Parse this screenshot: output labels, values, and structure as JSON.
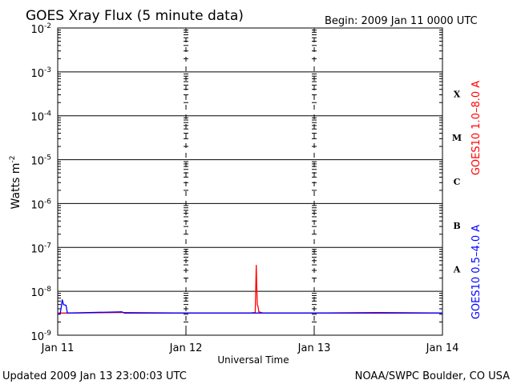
{
  "header": {
    "title": "GOES Xray Flux (5 minute data)",
    "begin": "Begin:  2009 Jan 11 0000 UTC"
  },
  "footer": {
    "updated": "Updated 2009 Jan 13 23:00:03 UTC",
    "credit": "NOAA/SWPC Boulder, CO USA"
  },
  "chart_data": {
    "type": "line",
    "title": "GOES Xray Flux (5 minute data)",
    "xlabel": "Universal Time",
    "ylabel_base": "Watts m",
    "ylabel_exp": "-2",
    "yscale": "log",
    "ylim": [
      1e-09,
      0.01
    ],
    "xlim": [
      0,
      3
    ],
    "x_unit": "days since 2009 Jan 11 0000 UTC",
    "x_ticks": [
      {
        "value": 0,
        "label": "Jan 11"
      },
      {
        "value": 1,
        "label": "Jan 12"
      },
      {
        "value": 2,
        "label": "Jan 13"
      },
      {
        "value": 3,
        "label": "Jan 14"
      }
    ],
    "y_ticks": [
      {
        "value": 1e-09,
        "exp": "-9"
      },
      {
        "value": 1e-08,
        "exp": "-8"
      },
      {
        "value": 1e-07,
        "exp": "-7"
      },
      {
        "value": 1e-06,
        "exp": "-6"
      },
      {
        "value": 1e-05,
        "exp": "-5"
      },
      {
        "value": 0.0001,
        "exp": "-4"
      },
      {
        "value": 0.001,
        "exp": "-3"
      },
      {
        "value": 0.01,
        "exp": "-2"
      }
    ],
    "flare_classes": [
      {
        "label": "A",
        "lower": 1e-08
      },
      {
        "label": "B",
        "lower": 1e-07
      },
      {
        "label": "C",
        "lower": 1e-06
      },
      {
        "label": "M",
        "lower": 1e-05
      },
      {
        "label": "X",
        "lower": 0.0001
      }
    ],
    "grid": true,
    "series": [
      {
        "name": "GOES10 1.0–8.0 A",
        "color": "#ff0000",
        "points": [
          [
            0.0,
            3.2e-09
          ],
          [
            0.1,
            3.2e-09
          ],
          [
            0.5,
            3.3e-09
          ],
          [
            1.0,
            3.2e-09
          ],
          [
            1.5,
            3.2e-09
          ],
          [
            1.54,
            3.3e-09
          ],
          [
            1.548,
            4e-08
          ],
          [
            1.552,
            1.3e-08
          ],
          [
            1.556,
            5e-09
          ],
          [
            1.562,
            4.5e-09
          ],
          [
            1.568,
            3.4e-09
          ],
          [
            1.6,
            3.2e-09
          ],
          [
            2.0,
            3.2e-09
          ],
          [
            2.5,
            3.3e-09
          ],
          [
            3.0,
            3.2e-09
          ]
        ]
      },
      {
        "name": "GOES10 0.5–4.0 A",
        "color": "#0000ff",
        "points": [
          [
            0.0,
            3e-09
          ],
          [
            0.02,
            3.2e-09
          ],
          [
            0.03,
            4.8e-09
          ],
          [
            0.035,
            6.5e-09
          ],
          [
            0.045,
            5e-09
          ],
          [
            0.065,
            4.8e-09
          ],
          [
            0.075,
            3.2e-09
          ],
          [
            0.5,
            3.4e-09
          ],
          [
            0.52,
            3.2e-09
          ],
          [
            1.0,
            3.2e-09
          ],
          [
            2.0,
            3.2e-09
          ],
          [
            3.0,
            3.2e-09
          ]
        ]
      }
    ]
  }
}
